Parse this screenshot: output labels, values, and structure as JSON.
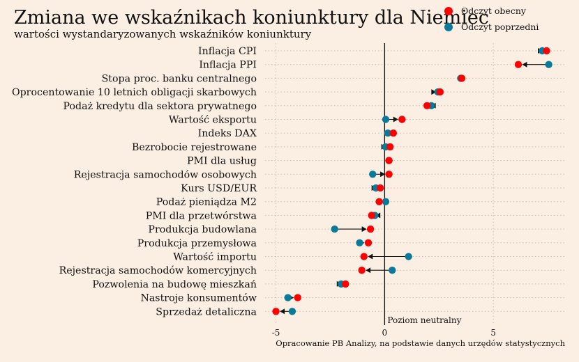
{
  "header": {
    "title": "Zmiana we wskaźnikach koniunktury dla Niemiec",
    "subtitle": "wartości wystandaryzowanych wskaźników koniunktury"
  },
  "legend": {
    "current_label": "Odczyt obecny",
    "previous_label": "Odczyt poprzedni"
  },
  "footer": {
    "source": "Opracowanie PB Analizy, na podstawie danych urzędów statystycznych"
  },
  "colors": {
    "current": "#ff0000",
    "previous": "#0a7a99",
    "background": "#fbeee3"
  },
  "chart_data": {
    "type": "dumbbell",
    "title": "Zmiana we wskaźnikach koniunktury dla Niemiec",
    "subtitle": "wartości wystandaryzowanych wskaźników koniunktury",
    "xlim": [
      -5.5,
      8.3
    ],
    "x_ticks": [
      -5,
      0,
      5
    ],
    "x_tick_labels": [
      "-5",
      "0",
      "5"
    ],
    "grid": true,
    "legend_position": "top-right",
    "reference_line": {
      "x": 0,
      "label": "Poziom neutralny"
    },
    "series_names": [
      "Odczyt obecny",
      "Odczyt poprzedni"
    ],
    "categories": [
      "Inflacja CPI",
      "Inflacja PPI",
      "Stopa proc. banku centralnego",
      "Oprocentowanie 10 letnich obligacji skarbowych",
      "Podaż kredytu dla sektora prywatnego",
      "Wartość eksportu",
      "Indeks DAX",
      "Bezrobocie rejestrowane",
      "PMI dla usług",
      "Rejestracja samochodów osobowych",
      "Kurs USD/EUR",
      "Podaż pieniądza M2",
      "PMI dla przetwórstwa",
      "Produkcja budowlana",
      "Produkcja przemysłowa",
      "Wartość importu",
      "Rejestracja samochodów komercyjnych",
      "Pozwolenia na budowę mieszkań",
      "Nastroje konsumentów",
      "Sprzedaż detaliczna"
    ],
    "current": [
      7.45,
      6.15,
      3.55,
      2.55,
      1.95,
      0.8,
      0.4,
      0.25,
      0.2,
      0.2,
      -0.2,
      -0.25,
      -0.6,
      -0.65,
      -0.75,
      -0.95,
      -1.05,
      -1.8,
      -4.0,
      -5.0
    ],
    "previous": [
      7.25,
      7.55,
      3.5,
      2.45,
      2.15,
      0.05,
      0.15,
      0.05,
      0.2,
      -0.55,
      -0.4,
      0.05,
      -0.45,
      -2.3,
      -1.15,
      1.1,
      0.35,
      -2.0,
      -4.45,
      -4.25
    ]
  }
}
